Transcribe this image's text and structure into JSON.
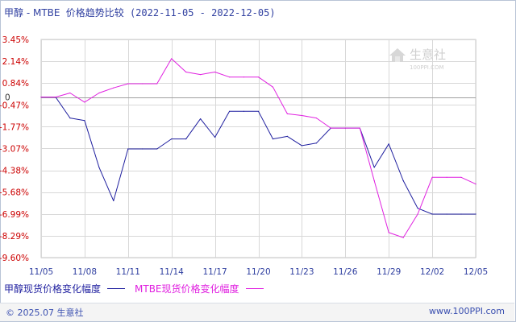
{
  "header": {
    "series_name": "甲醇 - MTBE",
    "subtitle": "价格趋势比较",
    "date_range": "(2022-11-05 - 2022-12-05)"
  },
  "watermark": {
    "logo_text": "生意社",
    "logo_url": "100PPI.COM"
  },
  "footer": {
    "copyright": "© 2025.07 生意社",
    "site": "www.100PPI.com"
  },
  "colors": {
    "series1": "#1f1f9f",
    "series2": "#e021e0",
    "axis_label": "#cc0000",
    "axis_label_zero": "#333333",
    "grid": "#d8d8d8",
    "zero_line": "#a0a0a0",
    "x_label": "#2f3fa0"
  },
  "chart_data": {
    "type": "line",
    "x_labels": [
      "11/05",
      "11/08",
      "11/11",
      "11/14",
      "11/17",
      "11/20",
      "11/23",
      "11/26",
      "11/29",
      "12/02",
      "12/05"
    ],
    "y_ticks": [
      "3.45%",
      "2.14%",
      "0.84%",
      "0",
      "-0.47%",
      "-1.77%",
      "-3.07%",
      "-4.38%",
      "-5.68%",
      "-6.99%",
      "-8.29%",
      "-9.60%"
    ],
    "ylim": [
      -9.6,
      3.45
    ],
    "x_count": 31,
    "grid": true,
    "legend_position": "bottom",
    "series": [
      {
        "name": "甲醇现货价格变化幅度",
        "color_key": "series1",
        "points": [
          [
            0,
            0
          ],
          [
            1,
            0
          ],
          [
            2,
            -1.25
          ],
          [
            3,
            -1.4
          ],
          [
            4,
            -4.2
          ],
          [
            5,
            -6.2
          ],
          [
            6,
            -3.1
          ],
          [
            7,
            -3.1
          ],
          [
            8,
            -3.1
          ],
          [
            9,
            -2.5
          ],
          [
            10,
            -2.5
          ],
          [
            11,
            -1.3
          ],
          [
            12,
            -2.4
          ],
          [
            13,
            -0.85
          ],
          [
            14,
            -0.85
          ],
          [
            15,
            -0.85
          ],
          [
            16,
            -2.5
          ],
          [
            17,
            -2.35
          ],
          [
            18,
            -2.9
          ],
          [
            19,
            -2.75
          ],
          [
            20,
            -1.85
          ],
          [
            21,
            -1.85
          ],
          [
            22,
            -1.85
          ],
          [
            23,
            -4.2
          ],
          [
            24,
            -2.8
          ],
          [
            25,
            -5.0
          ],
          [
            26,
            -6.65
          ],
          [
            27,
            -7.0
          ],
          [
            28,
            -7.0
          ],
          [
            29,
            -7.0
          ],
          [
            30,
            -7.0
          ]
        ]
      },
      {
        "name": "MTBE现货价格变化幅度",
        "color_key": "series2",
        "points": [
          [
            0,
            0
          ],
          [
            1,
            0
          ],
          [
            2,
            0.25
          ],
          [
            3,
            -0.3
          ],
          [
            4,
            0.25
          ],
          [
            5,
            0.55
          ],
          [
            6,
            0.8
          ],
          [
            7,
            0.8
          ],
          [
            8,
            0.8
          ],
          [
            9,
            2.3
          ],
          [
            10,
            1.5
          ],
          [
            11,
            1.35
          ],
          [
            12,
            1.5
          ],
          [
            13,
            1.2
          ],
          [
            14,
            1.2
          ],
          [
            15,
            1.2
          ],
          [
            16,
            0.6
          ],
          [
            17,
            -1.0
          ],
          [
            18,
            -1.1
          ],
          [
            19,
            -1.25
          ],
          [
            20,
            -1.85
          ],
          [
            21,
            -1.85
          ],
          [
            22,
            -1.85
          ],
          [
            23,
            -5.0
          ],
          [
            24,
            -8.1
          ],
          [
            25,
            -8.4
          ],
          [
            26,
            -7.0
          ],
          [
            27,
            -4.8
          ],
          [
            28,
            -4.8
          ],
          [
            29,
            -4.8
          ],
          [
            30,
            -5.2
          ]
        ]
      }
    ]
  }
}
